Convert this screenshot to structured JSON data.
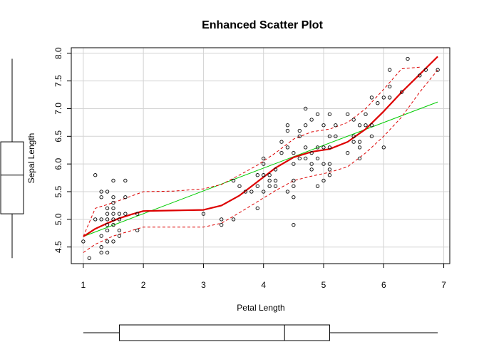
{
  "chart_data": {
    "type": "scatter",
    "title": "Enhanced Scatter Plot",
    "xlabel": "Petal Length",
    "ylabel": "Sepal Length",
    "xlim": [
      0.8,
      7.1
    ],
    "ylim": [
      4.2,
      8.1
    ],
    "x_ticks": [
      1,
      2,
      3,
      4,
      5,
      6,
      7
    ],
    "y_ticks": [
      4.5,
      5.0,
      5.5,
      6.0,
      6.5,
      7.0,
      7.5,
      8.0
    ],
    "x_tick_labels": [
      "1",
      "2",
      "3",
      "4",
      "5",
      "6",
      "7"
    ],
    "y_tick_labels": [
      "4.5",
      "5.0",
      "5.5",
      "6.0",
      "6.5",
      "7.0",
      "7.5",
      "8.0"
    ],
    "grid": true,
    "points": [
      [
        1.0,
        4.6
      ],
      [
        1.1,
        4.3
      ],
      [
        1.2,
        5.8
      ],
      [
        1.2,
        5.0
      ],
      [
        1.3,
        4.5
      ],
      [
        1.3,
        4.4
      ],
      [
        1.3,
        4.7
      ],
      [
        1.3,
        5.0
      ],
      [
        1.3,
        5.4
      ],
      [
        1.3,
        5.5
      ],
      [
        1.4,
        4.4
      ],
      [
        1.4,
        4.6
      ],
      [
        1.4,
        4.8
      ],
      [
        1.4,
        4.9
      ],
      [
        1.4,
        5.0
      ],
      [
        1.4,
        5.1
      ],
      [
        1.4,
        5.2
      ],
      [
        1.4,
        5.5
      ],
      [
        1.5,
        4.6
      ],
      [
        1.5,
        4.9
      ],
      [
        1.5,
        5.0
      ],
      [
        1.5,
        5.1
      ],
      [
        1.5,
        5.2
      ],
      [
        1.5,
        5.3
      ],
      [
        1.5,
        5.4
      ],
      [
        1.5,
        5.7
      ],
      [
        1.6,
        4.7
      ],
      [
        1.6,
        4.8
      ],
      [
        1.6,
        5.0
      ],
      [
        1.6,
        5.1
      ],
      [
        1.7,
        5.1
      ],
      [
        1.7,
        5.4
      ],
      [
        1.7,
        5.7
      ],
      [
        1.9,
        4.8
      ],
      [
        1.9,
        5.1
      ],
      [
        3.0,
        5.1
      ],
      [
        3.3,
        4.9
      ],
      [
        3.3,
        5.0
      ],
      [
        3.5,
        5.0
      ],
      [
        3.5,
        5.7
      ],
      [
        3.6,
        5.6
      ],
      [
        3.7,
        5.5
      ],
      [
        3.8,
        5.5
      ],
      [
        3.9,
        5.2
      ],
      [
        3.9,
        5.6
      ],
      [
        3.9,
        5.8
      ],
      [
        4.0,
        5.5
      ],
      [
        4.0,
        5.8
      ],
      [
        4.0,
        6.0
      ],
      [
        4.0,
        6.1
      ],
      [
        4.1,
        5.6
      ],
      [
        4.1,
        5.7
      ],
      [
        4.1,
        5.8
      ],
      [
        4.2,
        5.6
      ],
      [
        4.2,
        5.7
      ],
      [
        4.2,
        5.9
      ],
      [
        4.3,
        6.2
      ],
      [
        4.3,
        6.4
      ],
      [
        4.4,
        5.5
      ],
      [
        4.4,
        6.3
      ],
      [
        4.4,
        6.6
      ],
      [
        4.4,
        6.7
      ],
      [
        4.5,
        4.9
      ],
      [
        4.5,
        5.4
      ],
      [
        4.5,
        5.6
      ],
      [
        4.5,
        5.7
      ],
      [
        4.5,
        6.0
      ],
      [
        4.5,
        6.2
      ],
      [
        4.6,
        6.1
      ],
      [
        4.6,
        6.5
      ],
      [
        4.6,
        6.6
      ],
      [
        4.7,
        6.1
      ],
      [
        4.7,
        6.3
      ],
      [
        4.7,
        6.7
      ],
      [
        4.7,
        7.0
      ],
      [
        4.8,
        5.9
      ],
      [
        4.8,
        6.0
      ],
      [
        4.8,
        6.2
      ],
      [
        4.8,
        6.8
      ],
      [
        4.9,
        5.6
      ],
      [
        4.9,
        6.1
      ],
      [
        4.9,
        6.3
      ],
      [
        4.9,
        6.9
      ],
      [
        5.0,
        5.7
      ],
      [
        5.0,
        6.0
      ],
      [
        5.0,
        6.3
      ],
      [
        5.0,
        6.7
      ],
      [
        5.1,
        5.8
      ],
      [
        5.1,
        5.9
      ],
      [
        5.1,
        6.0
      ],
      [
        5.1,
        6.3
      ],
      [
        5.1,
        6.5
      ],
      [
        5.1,
        6.9
      ],
      [
        5.2,
        6.5
      ],
      [
        5.2,
        6.7
      ],
      [
        5.4,
        6.2
      ],
      [
        5.4,
        6.9
      ],
      [
        5.5,
        6.4
      ],
      [
        5.5,
        6.5
      ],
      [
        5.5,
        6.8
      ],
      [
        5.6,
        6.1
      ],
      [
        5.6,
        6.3
      ],
      [
        5.6,
        6.4
      ],
      [
        5.6,
        6.7
      ],
      [
        5.7,
        6.7
      ],
      [
        5.7,
        6.9
      ],
      [
        5.8,
        6.5
      ],
      [
        5.8,
        6.7
      ],
      [
        5.8,
        7.2
      ],
      [
        5.9,
        7.1
      ],
      [
        6.0,
        6.3
      ],
      [
        6.0,
        7.2
      ],
      [
        6.1,
        7.2
      ],
      [
        6.1,
        7.4
      ],
      [
        6.1,
        7.7
      ],
      [
        6.3,
        7.3
      ],
      [
        6.4,
        7.9
      ],
      [
        6.6,
        7.6
      ],
      [
        6.7,
        7.7
      ],
      [
        6.9,
        7.7
      ]
    ],
    "fit_line": {
      "x": [
        1.0,
        6.9
      ],
      "y": [
        4.69,
        7.12
      ],
      "color": "#00cc00"
    },
    "smooth": {
      "x": [
        1.0,
        1.2,
        1.4,
        1.6,
        1.8,
        2.0,
        2.5,
        3.0,
        3.3,
        3.6,
        3.9,
        4.2,
        4.5,
        4.8,
        5.1,
        5.4,
        5.7,
        6.0,
        6.3,
        6.6,
        6.9
      ],
      "y": [
        4.69,
        4.83,
        4.93,
        5.02,
        5.09,
        5.15,
        5.16,
        5.17,
        5.25,
        5.43,
        5.68,
        5.93,
        6.12,
        6.22,
        6.27,
        6.4,
        6.63,
        6.95,
        7.3,
        7.62,
        7.94
      ],
      "color": "#dd0000"
    },
    "smooth_upper": {
      "x": [
        1.0,
        1.2,
        1.5,
        2.0,
        2.5,
        3.0,
        3.3,
        3.6,
        3.9,
        4.2,
        4.5,
        4.8,
        5.1,
        5.4,
        5.7,
        6.0,
        6.3,
        6.6
      ],
      "y": [
        4.69,
        5.2,
        5.3,
        5.5,
        5.51,
        5.55,
        5.63,
        5.8,
        5.98,
        6.2,
        6.45,
        6.58,
        6.63,
        6.75,
        7.0,
        7.35,
        7.72,
        7.75
      ],
      "color": "#dd0000"
    },
    "smooth_lower": {
      "x": [
        1.0,
        1.2,
        1.5,
        2.0,
        2.5,
        3.0,
        3.3,
        3.6,
        3.9,
        4.2,
        4.5,
        4.8,
        5.1,
        5.4,
        5.7,
        6.0,
        6.3,
        6.6,
        6.9
      ],
      "y": [
        4.4,
        4.55,
        4.7,
        4.86,
        4.86,
        4.86,
        4.93,
        5.12,
        5.32,
        5.52,
        5.7,
        5.78,
        5.85,
        5.95,
        6.2,
        6.5,
        6.85,
        7.3,
        7.7
      ],
      "color": "#dd0000"
    },
    "x_boxplot": {
      "min": 1.0,
      "q1": 1.6,
      "median": 4.35,
      "q3": 5.1,
      "max": 6.9
    },
    "y_boxplot": {
      "min": 4.3,
      "q1": 5.1,
      "median": 5.8,
      "q3": 6.4,
      "max": 7.9
    }
  }
}
